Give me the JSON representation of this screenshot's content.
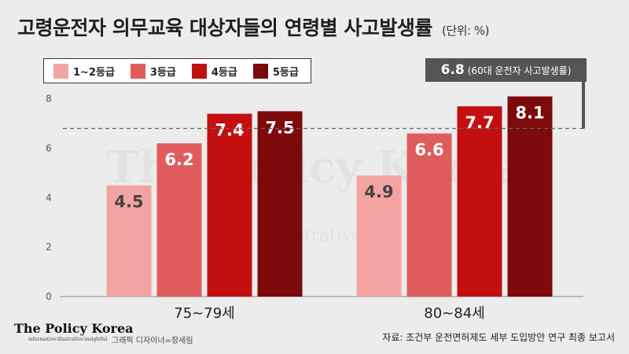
{
  "header": {
    "title": "고령운전자 의무교육 대상자들의 연령별 사고발생률",
    "unit": "(단위: %)"
  },
  "average_badge": {
    "value": "6.8",
    "label": "(60대 운전자 사고발생률)"
  },
  "chart_data": {
    "type": "bar",
    "categories": [
      "75~79세",
      "80~84세"
    ],
    "series": [
      {
        "name": "1~2등급",
        "color": "#f4a3a3",
        "values": [
          4.5,
          4.9
        ]
      },
      {
        "name": "3등급",
        "color": "#e05c5c",
        "values": [
          6.2,
          6.6
        ]
      },
      {
        "name": "4등급",
        "color": "#c40f10",
        "values": [
          7.4,
          7.7
        ]
      },
      {
        "name": "5등급",
        "color": "#7d0a0b",
        "values": [
          7.5,
          8.1
        ]
      }
    ],
    "reference_line": {
      "value": 6.8
    },
    "ylim": [
      0,
      8.5
    ],
    "yticks": [
      0,
      2,
      4,
      6,
      8
    ],
    "legend_position": "top-left",
    "grid": false
  },
  "watermark": {
    "text": "The Policy Korea",
    "subtext": "illustrative"
  },
  "footer": {
    "logo": "The Policy Korea",
    "logo_sub": "informative·illustrative·insightful",
    "designer": "그래픽 디자이너=장세림",
    "source": "자료: 조건부 운전면허제도 세부 도입방안 연구 최종 보고서"
  }
}
